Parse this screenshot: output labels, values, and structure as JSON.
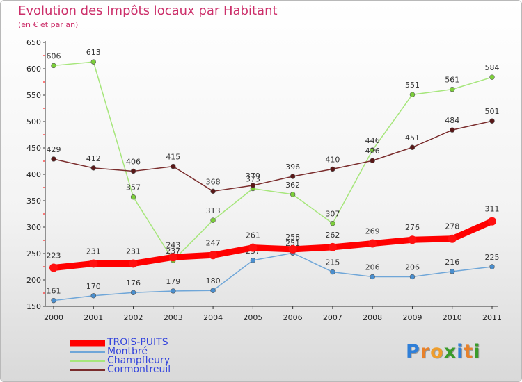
{
  "title": "Evolution des Impôts locaux par Habitant",
  "subtitle": "(en € et par an)",
  "logo": {
    "letters": [
      "P",
      "r",
      "o",
      "x",
      "i",
      "t",
      "i"
    ],
    "colors": [
      "#2f7fd8",
      "#e8812a",
      "#ef9d2b",
      "#3a9b2b",
      "#2f7fd8",
      "#e8812a",
      "#3a9b2b"
    ]
  },
  "chart_data": {
    "type": "line",
    "title": "Evolution des Impôts locaux par Habitant",
    "subtitle": "(en € et par an)",
    "xlabel": "",
    "ylabel": "",
    "x": [
      2000,
      2001,
      2002,
      2003,
      2004,
      2005,
      2006,
      2007,
      2008,
      2009,
      2010,
      2011
    ],
    "ylim": [
      150,
      650
    ],
    "yticks": [
      150,
      200,
      250,
      300,
      350,
      400,
      450,
      500,
      550,
      600,
      650
    ],
    "grid": false,
    "legend_position": "bottom-left",
    "series": [
      {
        "name": "TROIS-PUITS",
        "color": "#ff0000",
        "marker": "#ff1010",
        "width": "thick",
        "values": [
          223,
          231,
          231,
          243,
          247,
          261,
          258,
          262,
          269,
          276,
          278,
          311
        ]
      },
      {
        "name": "Montbré",
        "color": "#6fa6d8",
        "marker": "#4a8fcf",
        "width": "thin",
        "values": [
          161,
          170,
          176,
          179,
          180,
          237,
          251,
          215,
          206,
          206,
          216,
          225
        ]
      },
      {
        "name": "Champfleury",
        "color": "#a6e67b",
        "marker": "#7ccf3a",
        "width": "thin",
        "values": [
          606,
          613,
          357,
          237,
          313,
          373,
          362,
          307,
          446,
          551,
          561,
          584
        ]
      },
      {
        "name": "Cormontreuil",
        "color": "#7a2c2c",
        "marker": "#5a1818",
        "width": "thin",
        "values": [
          429,
          412,
          406,
          415,
          368,
          379,
          396,
          410,
          426,
          451,
          484,
          501
        ]
      }
    ]
  }
}
